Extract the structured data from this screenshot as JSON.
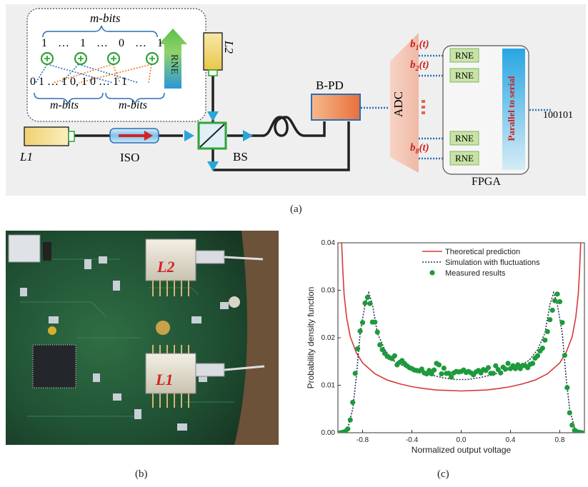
{
  "panel_a": {
    "caption": "(a)",
    "inset": {
      "top_label": "m-bits",
      "top_bits": [
        "1",
        "…",
        "1",
        "…",
        "0",
        "…",
        "1"
      ],
      "bottom_bits": "0 1 … 1 0, 1 0 … 1 1",
      "bottom_left_label": "m-bits",
      "bottom_right_label": "m-bits",
      "rne_arrow_label": "RNE"
    },
    "laser1": "L1",
    "laser2": "L2",
    "isolator": "ISO",
    "splitter": "BS",
    "detector": "B-PD",
    "adc": "ADC",
    "channels": [
      "b1(t)",
      "b2(t)",
      "b8(t)"
    ],
    "channel_main": "b",
    "channel_subs": [
      "1",
      "2",
      "8"
    ],
    "channel_tail": "(t)",
    "rne_label": "RNE",
    "p2s": "Parallel to serial",
    "fpga": "FPGA",
    "output": "100101",
    "colors": {
      "laser": "#f7dc8a",
      "arrow": "#2aa5d8",
      "bs": "#3bb34a",
      "pd": "#ee8a4f",
      "adc": "#f4c6b4",
      "rne": "#c9e3a6",
      "p2s": "#2a9fd8",
      "red": "#cc2222"
    }
  },
  "panel_b": {
    "caption": "(b)",
    "chip_top_label": "L2",
    "chip_bottom_label": "L1"
  },
  "panel_c": {
    "caption": "(c)",
    "chart_data": {
      "type": "line",
      "xlabel": "Normalized output voltage",
      "ylabel": "Probability density function",
      "xlim": [
        -1.0,
        1.0
      ],
      "ylim": [
        0.0,
        0.04
      ],
      "xticks": [
        -0.8,
        -0.4,
        0.0,
        0.4,
        0.8
      ],
      "yticks": [
        0.0,
        0.01,
        0.02,
        0.03,
        0.04
      ],
      "xtick_labels": [
        "-0.8",
        "-0.4",
        "0.0",
        "0.4",
        "0.8"
      ],
      "ytick_labels": [
        "0.00",
        "0.01",
        "0.02",
        "0.03",
        "0.04"
      ],
      "legend_position": "top-right",
      "series": [
        {
          "name": "Theoretical prediction",
          "style": "solid",
          "color": "#d43a3a",
          "x": [
            -0.97,
            -0.96,
            -0.95,
            -0.93,
            -0.9,
            -0.85,
            -0.8,
            -0.7,
            -0.6,
            -0.5,
            -0.4,
            -0.3,
            -0.2,
            -0.1,
            0.0,
            0.1,
            0.2,
            0.3,
            0.4,
            0.5,
            0.6,
            0.7,
            0.8,
            0.85,
            0.9,
            0.93,
            0.95,
            0.96,
            0.97
          ],
          "y": [
            0.04,
            0.0339,
            0.0292,
            0.0243,
            0.0202,
            0.0168,
            0.0147,
            0.0124,
            0.0111,
            0.0103,
            0.0097,
            0.0093,
            0.009,
            0.0089,
            0.0088,
            0.0089,
            0.009,
            0.0093,
            0.0097,
            0.0103,
            0.0111,
            0.0124,
            0.0147,
            0.0168,
            0.0202,
            0.0243,
            0.0292,
            0.0339,
            0.04
          ]
        },
        {
          "name": "Simulation with fluctuations",
          "style": "dotted",
          "color": "#23304f",
          "x": [
            -0.98,
            -0.92,
            -0.88,
            -0.85,
            -0.82,
            -0.78,
            -0.75,
            -0.72,
            -0.68,
            -0.62,
            -0.55,
            -0.45,
            -0.35,
            -0.25,
            -0.15,
            -0.05,
            0.05,
            0.15,
            0.25,
            0.35,
            0.45,
            0.55,
            0.62,
            0.68,
            0.72,
            0.75,
            0.78,
            0.82,
            0.85,
            0.88,
            0.92,
            0.98
          ],
          "y": [
            0.0,
            0.001,
            0.005,
            0.012,
            0.021,
            0.027,
            0.0295,
            0.027,
            0.021,
            0.0175,
            0.0152,
            0.0138,
            0.013,
            0.0122,
            0.0116,
            0.0112,
            0.0112,
            0.0116,
            0.0122,
            0.013,
            0.0138,
            0.0152,
            0.0175,
            0.021,
            0.027,
            0.0295,
            0.027,
            0.021,
            0.012,
            0.005,
            0.001,
            0.0
          ]
        },
        {
          "name": "Measured results",
          "style": "markers",
          "color": "#1e9a3c",
          "x": [
            -0.98,
            -0.96,
            -0.94,
            -0.92,
            -0.9,
            -0.88,
            -0.86,
            -0.84,
            -0.82,
            -0.8,
            -0.78,
            -0.76,
            -0.74,
            -0.72,
            -0.7,
            -0.68,
            -0.66,
            -0.64,
            -0.62,
            -0.6,
            -0.58,
            -0.56,
            -0.54,
            -0.52,
            -0.5,
            -0.48,
            -0.46,
            -0.44,
            -0.42,
            -0.4,
            -0.38,
            -0.36,
            -0.34,
            -0.32,
            -0.3,
            -0.28,
            -0.26,
            -0.24,
            -0.22,
            -0.2,
            -0.18,
            -0.16,
            -0.14,
            -0.12,
            -0.1,
            -0.08,
            -0.06,
            -0.04,
            -0.02,
            0.0,
            0.02,
            0.04,
            0.06,
            0.08,
            0.1,
            0.12,
            0.14,
            0.16,
            0.18,
            0.2,
            0.22,
            0.24,
            0.26,
            0.28,
            0.3,
            0.32,
            0.34,
            0.36,
            0.38,
            0.4,
            0.42,
            0.44,
            0.46,
            0.48,
            0.5,
            0.52,
            0.54,
            0.56,
            0.58,
            0.6,
            0.62,
            0.64,
            0.66,
            0.68,
            0.7,
            0.72,
            0.74,
            0.76,
            0.78,
            0.8,
            0.82,
            0.84,
            0.86,
            0.88,
            0.9,
            0.92,
            0.94,
            0.96,
            0.98
          ],
          "y": [
            0.0,
            0.0001,
            0.0003,
            0.0008,
            0.0027,
            0.0064,
            0.0125,
            0.0177,
            0.0214,
            0.0232,
            0.0273,
            0.0285,
            0.0272,
            0.0233,
            0.0233,
            0.0212,
            0.0185,
            0.0175,
            0.0167,
            0.0161,
            0.0158,
            0.0156,
            0.0162,
            0.0143,
            0.0148,
            0.0152,
            0.0146,
            0.0141,
            0.0137,
            0.0135,
            0.0132,
            0.0131,
            0.013,
            0.0134,
            0.0126,
            0.0124,
            0.0131,
            0.0124,
            0.0132,
            0.0146,
            0.0143,
            0.0124,
            0.0136,
            0.0125,
            0.0125,
            0.0117,
            0.0126,
            0.0129,
            0.0128,
            0.0129,
            0.0132,
            0.0127,
            0.0129,
            0.0126,
            0.0122,
            0.0128,
            0.0131,
            0.0126,
            0.0133,
            0.0131,
            0.0137,
            0.0125,
            0.0125,
            0.0141,
            0.0133,
            0.0126,
            0.0138,
            0.0134,
            0.0146,
            0.0135,
            0.0141,
            0.0135,
            0.0143,
            0.0135,
            0.0142,
            0.0141,
            0.0137,
            0.0144,
            0.0146,
            0.0157,
            0.0162,
            0.0172,
            0.0178,
            0.0195,
            0.0213,
            0.0238,
            0.0258,
            0.0278,
            0.0292,
            0.0276,
            0.0232,
            0.0163,
            0.0095,
            0.0042,
            0.0016,
            0.0005,
            0.0002,
            0.0001,
            0.0
          ]
        }
      ]
    }
  }
}
